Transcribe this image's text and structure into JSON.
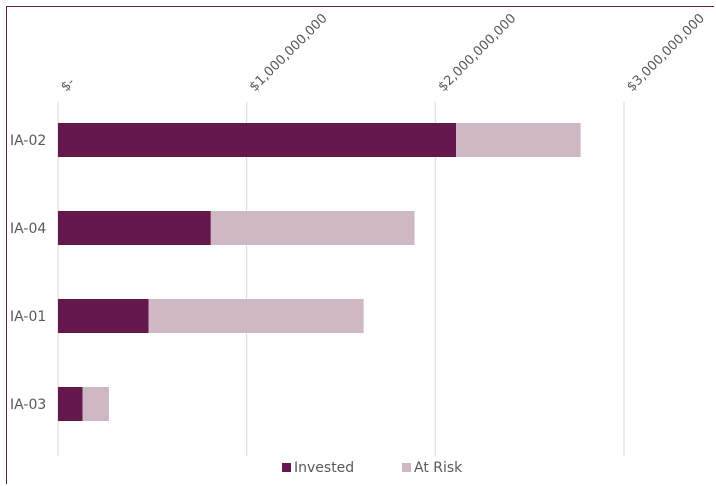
{
  "chart_data": {
    "type": "bar",
    "orientation": "horizontal",
    "stacked": true,
    "categories": [
      "IA-02",
      "IA-04",
      "IA-01",
      "IA-03"
    ],
    "series": [
      {
        "name": "Invested",
        "values": [
          2110000000,
          810000000,
          480000000,
          130000000
        ]
      },
      {
        "name": "At Risk",
        "values": [
          660000000,
          1080000000,
          1140000000,
          140000000
        ]
      }
    ],
    "x_tick_labels": [
      "$-",
      "$1,000,000,000",
      "$2,000,000,000",
      "$3,000,000,000"
    ],
    "x_ticks": [
      0,
      1000000000,
      2000000000,
      3000000000
    ],
    "xlim": [
      0,
      3000000000
    ],
    "xaxis_position": "top",
    "grid": true,
    "legend_position": "bottom",
    "colors": {
      "Invested": "#64184c",
      "At Risk": "#cdb8c4",
      "frame": "#6b1d4a",
      "grid": "#d9d9d9"
    }
  }
}
